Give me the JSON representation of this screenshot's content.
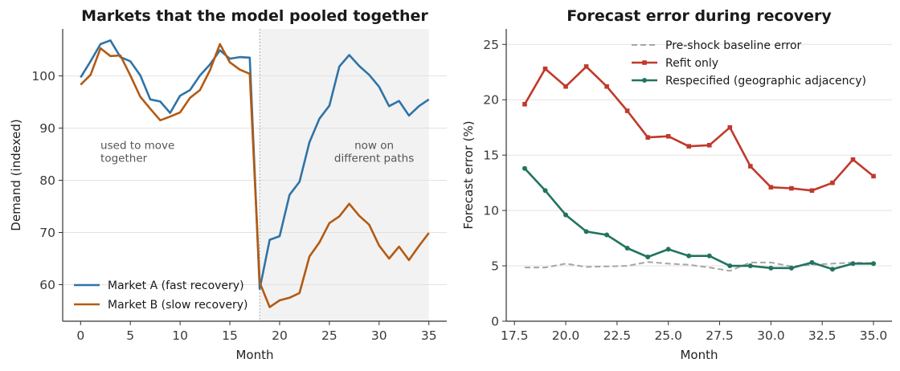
{
  "chart_data": [
    {
      "type": "line",
      "title": "Markets that the model pooled together",
      "xlabel": "Month",
      "ylabel": "Demand (indexed)",
      "xlim": [
        -1.8,
        36.8
      ],
      "ylim": [
        53,
        109
      ],
      "xticks": [
        0,
        5,
        10,
        15,
        20,
        25,
        30,
        35
      ],
      "yticks": [
        60,
        70,
        80,
        90,
        100
      ],
      "grid": "horizontal",
      "legend": "lower-left",
      "shaded_region": {
        "x_start": 18,
        "x_end": 35
      },
      "vline_x": 18,
      "annotations": [
        {
          "lines": [
            "used to move",
            "together"
          ],
          "x": 2,
          "y": 86
        },
        {
          "lines": [
            "now on",
            "different paths"
          ],
          "x": 29.5,
          "y": 86
        }
      ],
      "series": [
        {
          "name": "Market A (fast recovery)",
          "color": "#2f74a6",
          "x": [
            0,
            1,
            2,
            3,
            4,
            5,
            6,
            7,
            8,
            9,
            10,
            11,
            12,
            13,
            14,
            15,
            16,
            17,
            18,
            19,
            20,
            21,
            22,
            23,
            24,
            25,
            26,
            27,
            28,
            29,
            30,
            31,
            32,
            33,
            34,
            35
          ],
          "values": [
            99.7,
            102.8,
            106.1,
            106.8,
            103.6,
            102.8,
            100.1,
            95.5,
            95.1,
            92.9,
            96.2,
            97.3,
            100.1,
            102.2,
            104.9,
            103.3,
            103.6,
            103.5,
            59.2,
            68.6,
            69.3,
            77.2,
            79.7,
            87.3,
            91.8,
            94.3,
            101.8,
            104.0,
            101.9,
            100.2,
            97.9,
            94.2,
            95.2,
            92.4,
            94.2,
            95.5
          ]
        },
        {
          "name": "Market B (slow recovery)",
          "color": "#b35a12",
          "x": [
            0,
            1,
            2,
            3,
            4,
            5,
            6,
            7,
            8,
            9,
            10,
            11,
            12,
            13,
            14,
            15,
            16,
            17,
            18,
            19,
            20,
            21,
            22,
            23,
            24,
            25,
            26,
            27,
            28,
            29,
            30,
            31,
            32,
            33,
            34,
            35
          ],
          "values": [
            98.3,
            100.2,
            105.3,
            103.8,
            103.9,
            100.1,
            96.0,
            93.7,
            91.5,
            92.2,
            93.0,
            95.8,
            97.3,
            101.1,
            106.1,
            102.6,
            101.2,
            100.4,
            60.4,
            55.7,
            57.0,
            57.5,
            58.4,
            65.4,
            68.1,
            71.8,
            73.1,
            75.5,
            73.2,
            71.5,
            67.5,
            65.0,
            67.3,
            64.7,
            67.4,
            69.9
          ]
        }
      ]
    },
    {
      "type": "line",
      "title": "Forecast error during recovery",
      "xlabel": "Month",
      "ylabel": "Forecast error (%)",
      "xlim": [
        17.1,
        35.9
      ],
      "ylim": [
        0,
        26.4
      ],
      "xticks": [
        17.5,
        20.0,
        22.5,
        25.0,
        27.5,
        30.0,
        32.5,
        35.0
      ],
      "xtick_labels": [
        "17.5",
        "20.0",
        "22.5",
        "25.0",
        "27.5",
        "30.0",
        "32.5",
        "35.0"
      ],
      "yticks": [
        0,
        5,
        10,
        15,
        20,
        25
      ],
      "grid": "horizontal",
      "legend": "top-center",
      "series": [
        {
          "name": "Pre-shock baseline error",
          "color": "#a6a6a6",
          "style": "dashed",
          "x": [
            18,
            19,
            20,
            21,
            22,
            23,
            24,
            25,
            26,
            27,
            28,
            29,
            30,
            31,
            32,
            33,
            34,
            35
          ],
          "values": [
            4.85,
            4.85,
            5.2,
            4.9,
            4.95,
            5.0,
            5.35,
            5.2,
            5.1,
            4.85,
            4.55,
            5.3,
            5.3,
            4.95,
            5.1,
            5.2,
            5.3,
            5.25
          ]
        },
        {
          "name": "Refit only",
          "color": "#c0392b",
          "marker": "square",
          "x": [
            18,
            19,
            20,
            21,
            22,
            23,
            24,
            25,
            26,
            27,
            28,
            29,
            30,
            31,
            32,
            33,
            34,
            35
          ],
          "values": [
            19.6,
            22.8,
            21.2,
            23.0,
            21.2,
            19.0,
            16.6,
            16.7,
            15.8,
            15.9,
            17.5,
            14.0,
            12.1,
            12.0,
            11.8,
            12.5,
            14.6,
            13.1
          ]
        },
        {
          "name": "Respecified (geographic adjacency)",
          "color": "#22735f",
          "marker": "circle",
          "x": [
            18,
            19,
            20,
            21,
            22,
            23,
            24,
            25,
            26,
            27,
            28,
            29,
            30,
            31,
            32,
            33,
            34,
            35
          ],
          "values": [
            13.8,
            11.8,
            9.6,
            8.1,
            7.8,
            6.6,
            5.8,
            6.5,
            5.9,
            5.9,
            5.0,
            5.0,
            4.8,
            4.8,
            5.3,
            4.7,
            5.2,
            5.2
          ]
        }
      ]
    }
  ]
}
